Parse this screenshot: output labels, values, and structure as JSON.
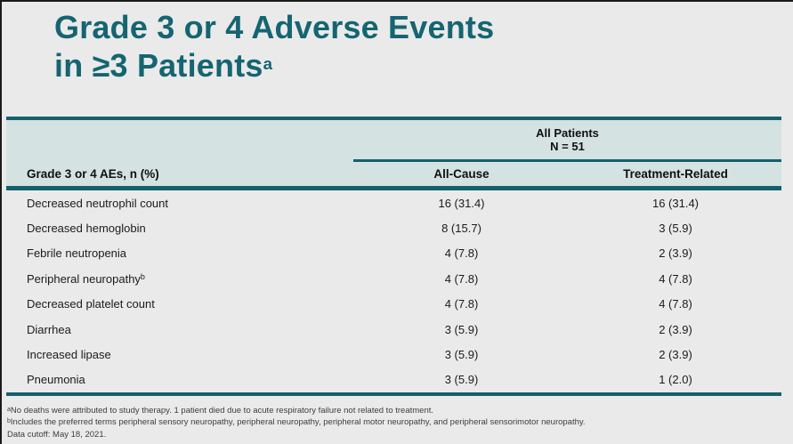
{
  "colors": {
    "slide_background": "#EAEAEA",
    "title_teal": "#156571",
    "rule_teal": "#14616C",
    "header_band": "#D5E2E2",
    "body_text": "#1B1B1B",
    "footnote_text": "#3D3D3D"
  },
  "title": {
    "line1": "Grade 3 or 4 Adverse Events",
    "line2": "in ≥3 Patients",
    "line2_sup": "a"
  },
  "table": {
    "span_header": {
      "line1": "All Patients",
      "line2": "N = 51"
    },
    "columns": {
      "col1": "Grade 3 or 4 AEs, n (%)",
      "col2": "All-Cause",
      "col3": "Treatment-Related"
    },
    "rows": [
      {
        "name": "Decreased neutrophil count",
        "sup": "",
        "all_cause": "16 (31.4)",
        "treatment_related": "16 (31.4)"
      },
      {
        "name": "Decreased hemoglobin",
        "sup": "",
        "all_cause": "8 (15.7)",
        "treatment_related": "3 (5.9)"
      },
      {
        "name": "Febrile neutropenia",
        "sup": "",
        "all_cause": "4 (7.8)",
        "treatment_related": "2 (3.9)"
      },
      {
        "name": "Peripheral neuropathy",
        "sup": "b",
        "all_cause": "4 (7.8)",
        "treatment_related": "4 (7.8)"
      },
      {
        "name": "Decreased platelet count",
        "sup": "",
        "all_cause": "4 (7.8)",
        "treatment_related": "4 (7.8)"
      },
      {
        "name": "Diarrhea",
        "sup": "",
        "all_cause": "3 (5.9)",
        "treatment_related": "2 (3.9)"
      },
      {
        "name": "Increased lipase",
        "sup": "",
        "all_cause": "3 (5.9)",
        "treatment_related": "2 (3.9)"
      },
      {
        "name": "Pneumonia",
        "sup": "",
        "all_cause": "3 (5.9)",
        "treatment_related": "1 (2.0)"
      }
    ]
  },
  "footnotes": [
    {
      "sup": "a",
      "text": "No deaths were attributed to study therapy. 1 patient died due to acute respiratory failure not related to treatment."
    },
    {
      "sup": "b",
      "text": "Includes the preferred terms peripheral sensory neuropathy, peripheral neuropathy, peripheral motor neuropathy, and peripheral sensorimotor neuropathy."
    },
    {
      "sup": "",
      "text": "Data cutoff: May 18, 2021."
    }
  ],
  "chart_data": {
    "type": "table",
    "title": "Grade 3 or 4 Adverse Events in ≥3 Patients",
    "group_header": "All Patients N = 51",
    "columns": [
      "Grade 3 or 4 AEs, n (%)",
      "All-Cause",
      "Treatment-Related"
    ],
    "rows": [
      [
        "Decreased neutrophil count",
        "16 (31.4)",
        "16 (31.4)"
      ],
      [
        "Decreased hemoglobin",
        "8 (15.7)",
        "3 (5.9)"
      ],
      [
        "Febrile neutropenia",
        "4 (7.8)",
        "2 (3.9)"
      ],
      [
        "Peripheral neuropathy",
        "4 (7.8)",
        "4 (7.8)"
      ],
      [
        "Decreased platelet count",
        "4 (7.8)",
        "4 (7.8)"
      ],
      [
        "Diarrhea",
        "3 (5.9)",
        "2 (3.9)"
      ],
      [
        "Increased lipase",
        "3 (5.9)",
        "2 (3.9)"
      ],
      [
        "Pneumonia",
        "3 (5.9)",
        "1 (2.0)"
      ]
    ]
  }
}
